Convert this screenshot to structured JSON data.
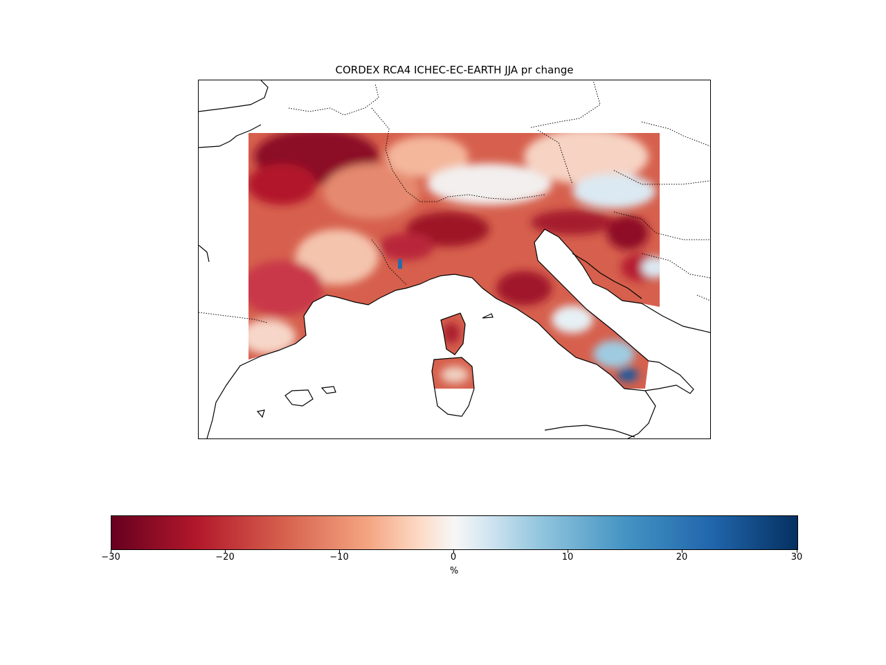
{
  "figure": {
    "title": "CORDEX RCA4 ICHEC-EC-EARTH JJA pr change"
  },
  "colorbar": {
    "label": "%",
    "ticks": [
      "−30",
      "−20",
      "−10",
      "0",
      "10",
      "20",
      "30"
    ],
    "tick_values": [
      -30,
      -20,
      -10,
      0,
      10,
      20,
      30
    ],
    "vmin": -30,
    "vmax": 30,
    "colormap": "RdBu",
    "colors": [
      "#67001f",
      "#b2182b",
      "#d6604d",
      "#f4a582",
      "#fddbc7",
      "#f7f7f7",
      "#d1e5f0",
      "#92c5de",
      "#4393c3",
      "#2166ac",
      "#053061"
    ]
  },
  "map": {
    "region": "Alpine region / Italy",
    "field": "JJA precipitation change",
    "dominant_sign": "negative",
    "features": [
      "coastlines",
      "country borders"
    ]
  }
}
